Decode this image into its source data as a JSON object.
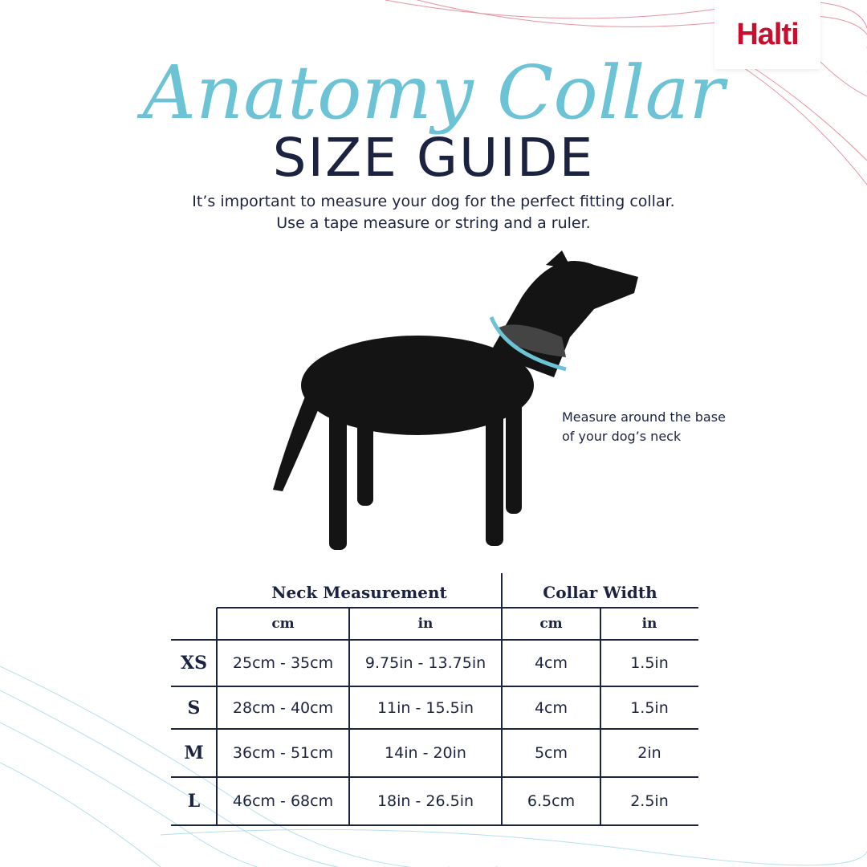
{
  "brand": "Halti",
  "title": {
    "script": "Anatomy Collar",
    "main": "SIZE GUIDE"
  },
  "intro": [
    "It’s important to measure your dog for the perfect fitting collar.",
    "Use a tape measure or string and a ruler."
  ],
  "caption": [
    "Measure around the base",
    "of your dog’s neck"
  ],
  "table": {
    "groups": [
      "Neck Measurement",
      "Collar Width"
    ],
    "subheaders": [
      "cm",
      "in",
      "cm",
      "in"
    ],
    "rows": [
      [
        "XS",
        "25cm - 35cm",
        "9.75in - 13.75in",
        "4cm",
        "1.5in"
      ],
      [
        "S",
        "28cm - 40cm",
        "11in - 15.5in",
        "4cm",
        "1.5in"
      ],
      [
        "M",
        "36cm - 51cm",
        "14in - 20in",
        "5cm",
        "2in"
      ],
      [
        "L",
        "46cm - 68cm",
        "18in - 26.5in",
        "6.5cm",
        "2.5in"
      ]
    ]
  }
}
